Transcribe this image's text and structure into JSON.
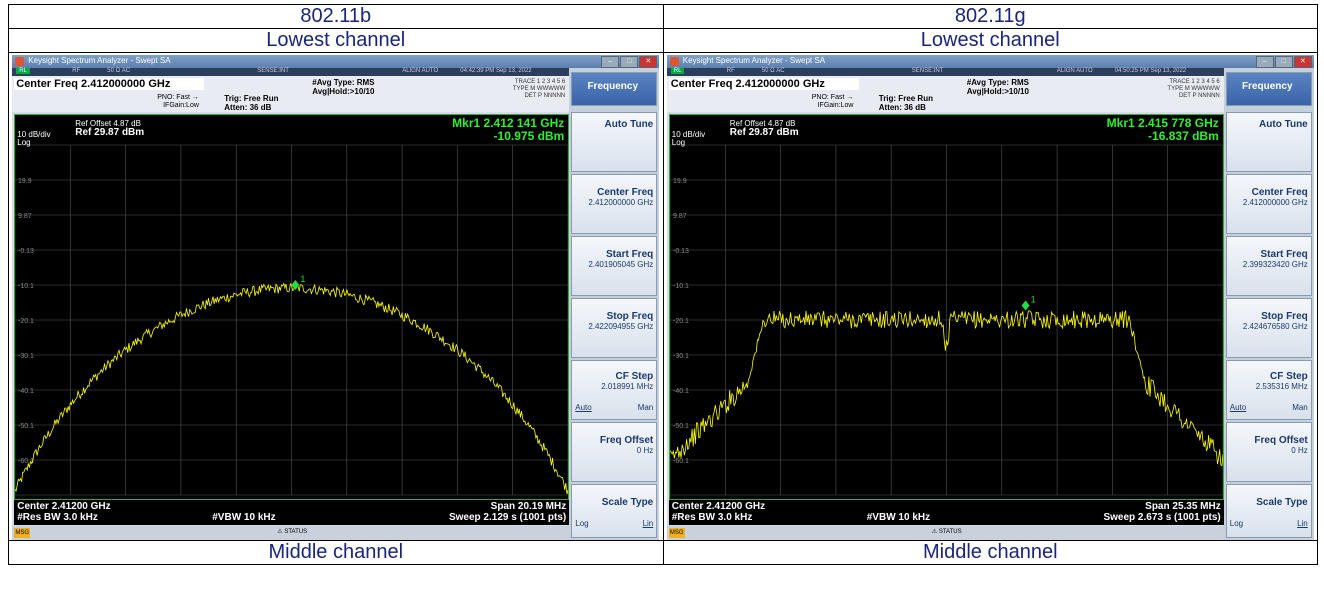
{
  "columns": [
    {
      "standard": "802.11b",
      "channel_label": "Lowest channel",
      "bottom_label": "Middle channel",
      "app_title": "Keysight Spectrum Analyzer - Swept SA",
      "info": {
        "rl": "RL",
        "rf": "RF",
        "ohm": "50 Ω  AC",
        "sense": "SENSE:INT",
        "align": "ALIGN AUTO",
        "time": "04:42:39 PM Sep 13, 2022"
      },
      "center_freq": "Center Freq 2.412000000 GHz",
      "pno": "PNO: Fast",
      "ifgain": "IFGain:Low",
      "trig": "Trig: Free Run",
      "atten": "Atten: 36 dB",
      "avg_type": "#Avg Type: RMS",
      "avg_hold": "Avg|Hold:>10/10",
      "trace_line1": "TRACE 1 2 3 4 5 6",
      "trace_line2": "TYPE M WWWWW",
      "trace_line3": "DET P NNNNN",
      "ref_offset": "Ref Offset 4.87 dB",
      "ref_level": "Ref 29.87 dBm",
      "scale_div": "10 dB/div",
      "scale_log": "Log",
      "y_ticks": [
        "19.9",
        "9.87",
        "-0.13",
        "-10.1",
        "-20.1",
        "-30.1",
        "-40.1",
        "-50.1",
        "-60.1"
      ],
      "marker_freq": "Mkr1 2.412 141 GHz",
      "marker_amp": "-10.975 dBm",
      "marker_label": "1",
      "center": "Center 2.41200 GHz",
      "span": "Span 20.19 MHz",
      "rbw": "#Res BW 3.0 kHz",
      "vbw": "#VBW 10 kHz",
      "sweep": "Sweep  2.129 s (1001 pts)",
      "msg": "MSG",
      "status": "STATUS",
      "softkeys": {
        "menu": "Frequency",
        "auto_tune": "Auto Tune",
        "center_freq": "Center Freq",
        "center_freq_val": "2.412000000 GHz",
        "start_freq": "Start Freq",
        "start_freq_val": "2.401905045 GHz",
        "stop_freq": "Stop Freq",
        "stop_freq_val": "2.422094955 GHz",
        "cf_step": "CF Step",
        "cf_step_val": "2.018991 MHz",
        "auto": "Auto",
        "man": "Man",
        "freq_offset": "Freq Offset",
        "freq_offset_val": "0 Hz",
        "scale_type": "Scale Type",
        "log": "Log",
        "lin": "Lin"
      },
      "trace_shape": "dsss"
    },
    {
      "standard": "802.11g",
      "channel_label": "Lowest channel",
      "bottom_label": "Middle channel",
      "app_title": "Keysight Spectrum Analyzer - Swept SA",
      "info": {
        "rl": "RL",
        "rf": "RF",
        "ohm": "50 Ω  AC",
        "sense": "SENSE:INT",
        "align": "ALIGN AUTO",
        "time": "04:50:25 PM Sep 13, 2022"
      },
      "center_freq": "Center Freq 2.412000000 GHz",
      "pno": "PNO: Fast",
      "ifgain": "IFGain:Low",
      "trig": "Trig: Free Run",
      "atten": "Atten: 36 dB",
      "avg_type": "#Avg Type: RMS",
      "avg_hold": "Avg|Hold:>10/10",
      "trace_line1": "TRACE 1 2 3 4 5 6",
      "trace_line2": "TYPE M WWWWW",
      "trace_line3": "DET P NNNNN",
      "ref_offset": "Ref Offset 4.87 dB",
      "ref_level": "Ref 29.87 dBm",
      "scale_div": "10 dB/div",
      "scale_log": "Log",
      "y_ticks": [
        "19.9",
        "9.87",
        "-0.13",
        "-10.1",
        "-20.1",
        "-30.1",
        "-40.1",
        "-50.1",
        "-60.1"
      ],
      "marker_freq": "Mkr1 2.415 778 GHz",
      "marker_amp": "-16.837 dBm",
      "marker_label": "1",
      "center": "Center 2.41200 GHz",
      "span": "Span 25.35 MHz",
      "rbw": "#Res BW 3.0 kHz",
      "vbw": "#VBW 10 kHz",
      "sweep": "Sweep  2.673 s (1001 pts)",
      "msg": "MSG",
      "status": "STATUS",
      "softkeys": {
        "menu": "Frequency",
        "auto_tune": "Auto Tune",
        "center_freq": "Center Freq",
        "center_freq_val": "2.412000000 GHz",
        "start_freq": "Start Freq",
        "start_freq_val": "2.399323420 GHz",
        "stop_freq": "Stop Freq",
        "stop_freq_val": "2.424676580 GHz",
        "cf_step": "CF Step",
        "cf_step_val": "2.535316 MHz",
        "auto": "Auto",
        "man": "Man",
        "freq_offset": "Freq Offset",
        "freq_offset_val": "0 Hz",
        "scale_type": "Scale Type",
        "log": "Log",
        "lin": "Lin"
      },
      "trace_shape": "ofdm"
    }
  ],
  "colors": {
    "trace": "#ffff00",
    "marker": "#22dd44",
    "grid": "#555555",
    "marker_text": "#2ef02e"
  }
}
